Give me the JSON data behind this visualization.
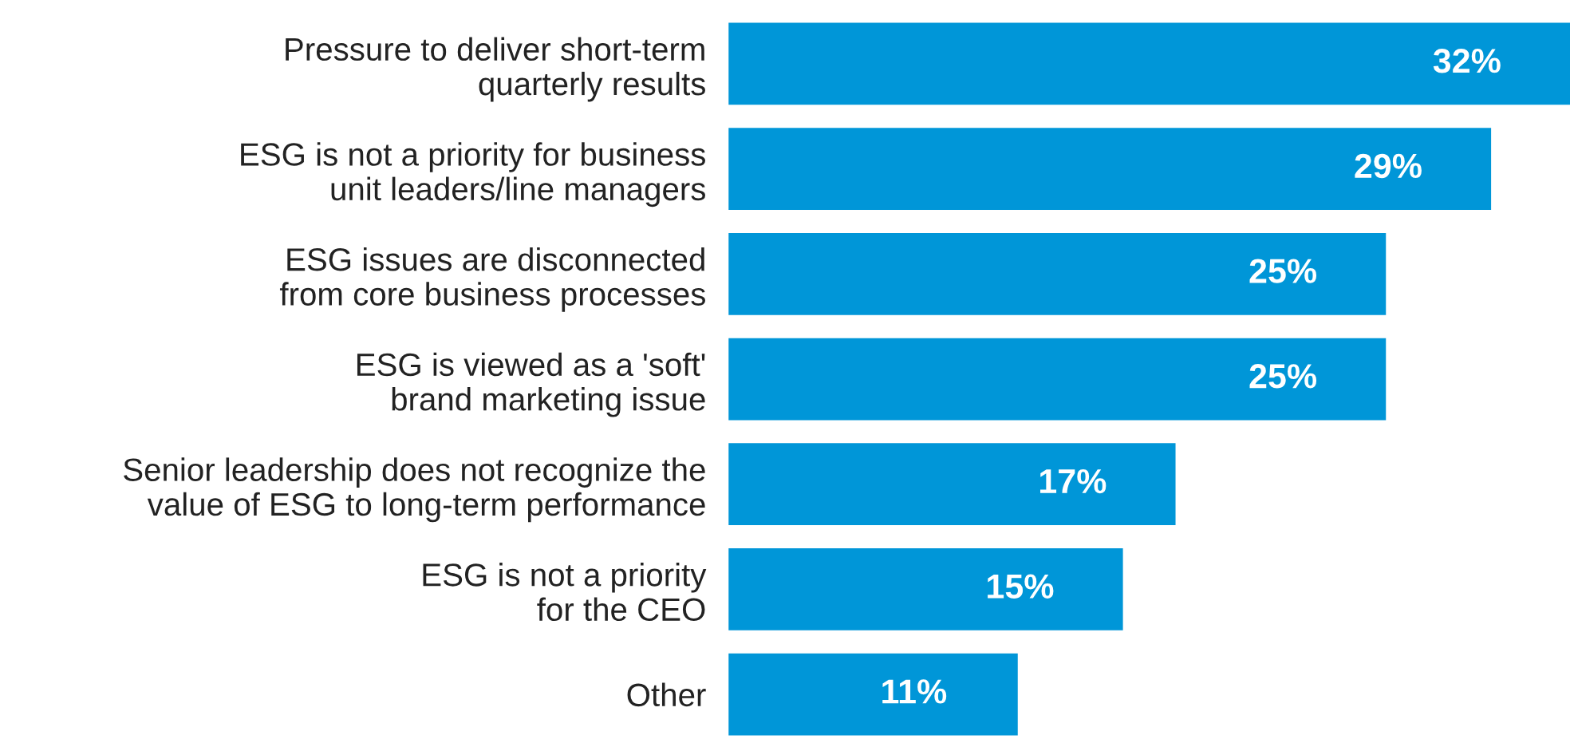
{
  "chart_data": {
    "type": "bar",
    "orientation": "horizontal",
    "categories": [
      "Pressure to deliver short-term\nquarterly results",
      "ESG is not a priority for business\nunit leaders/line managers",
      "ESG issues are disconnected\nfrom core business processes",
      "ESG is viewed as a 'soft'\nbrand marketing issue",
      "Senior leadership does not recognize the\nvalue of ESG to long-term performance",
      "ESG is not a priority\nfor the CEO",
      "Other"
    ],
    "values": [
      32,
      29,
      25,
      25,
      17,
      15,
      11
    ],
    "value_labels": [
      "32%",
      "29%",
      "25%",
      "25%",
      "17%",
      "15%",
      "11%"
    ],
    "color": "#0096d8",
    "xlim": [
      0,
      32
    ],
    "tick_labels": "y",
    "grid": false,
    "legend": false
  }
}
